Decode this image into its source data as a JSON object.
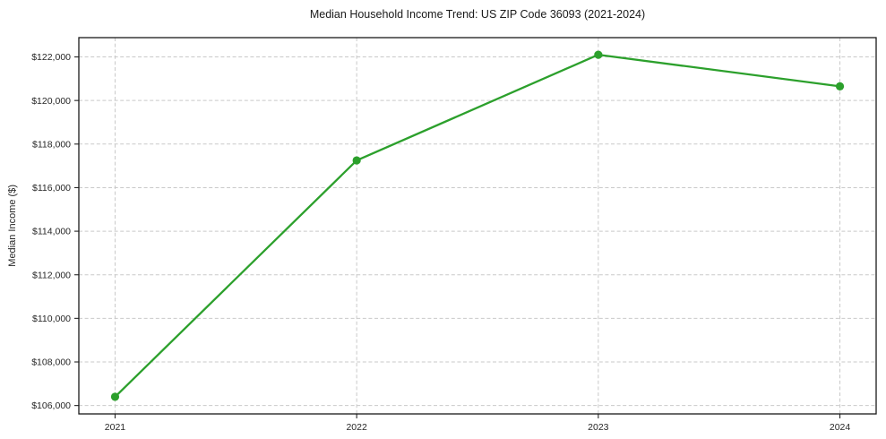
{
  "chart_data": {
    "type": "line",
    "title": "Median Household Income Trend: US ZIP Code 36093 (2021-2024)",
    "xlabel": "",
    "ylabel": "Median Income ($)",
    "x": [
      2021,
      2022,
      2023,
      2024
    ],
    "x_tick_labels": [
      "2021",
      "2022",
      "2023",
      "2024"
    ],
    "values": [
      106400,
      117250,
      122100,
      120650
    ],
    "yticks": [
      106000,
      108000,
      110000,
      112000,
      114000,
      116000,
      118000,
      120000,
      122000
    ],
    "ytick_prefix": "$",
    "xlim": [
      2020.85,
      2024.15
    ],
    "ylim": [
      105615,
      122885
    ],
    "line_color": "#2ca02c",
    "marker": "circle",
    "marker_color": "#2ca02c",
    "grid": {
      "visible": true,
      "style": "dashed",
      "color": "#c9c9c9"
    },
    "legend": "none",
    "spine_color": "#1a1a1a"
  }
}
